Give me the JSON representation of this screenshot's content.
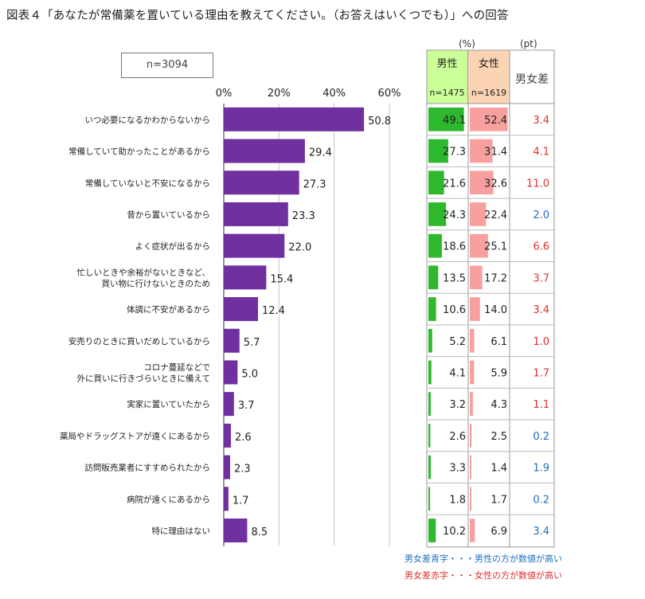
{
  "title": "図表４「あなたが常備薬を置いている理由を教えてください。（お答えはいくつでも）」への回答",
  "n_label": "n=3094",
  "table": {
    "unit_pct": "(%)",
    "unit_pt": "(pt)",
    "male_header": "男性",
    "female_header": "女性",
    "male_n": "n=1475",
    "female_n": "n=1619",
    "diff_header": "男女差",
    "male_color": "#2db82d",
    "female_color": "#f8a0a0",
    "male_header_bg": "#ccff99",
    "female_header_bg": "#fbd4b4",
    "blue": "#1f6fbf",
    "red": "#e03030"
  },
  "notes": {
    "blue_note": "男女差青字・・・男性の方が数値が高い",
    "red_note": "男女差赤字・・・女性の方が数値が高い"
  },
  "chart_data": {
    "type": "bar",
    "orientation": "horizontal",
    "xlim": [
      0,
      60
    ],
    "x_ticks": [
      "0%",
      "20%",
      "40%",
      "60%"
    ],
    "bar_color": "#7030a0",
    "categories": [
      [
        "いつ必要になるかわからないから"
      ],
      [
        "常備していて助かったことがあるから"
      ],
      [
        "常備していないと不安になるから"
      ],
      [
        "昔から置いているから"
      ],
      [
        "よく症状が出るから"
      ],
      [
        "忙しいときや余裕がないときなど、",
        "買い物に行けないときのため"
      ],
      [
        "体調に不安があるから"
      ],
      [
        "安売りのときに買いだめしているから"
      ],
      [
        "コロナ蔓延などで",
        "外に買いに行きづらいときに備えて"
      ],
      [
        "実家に置いていたから"
      ],
      [
        "薬局やドラッグストアが遠くにあるから"
      ],
      [
        "訪問販売業者にすすめられたから"
      ],
      [
        "病院が遠くにあるから"
      ],
      [
        "特に理由はない"
      ]
    ],
    "values": [
      50.8,
      29.4,
      27.3,
      23.3,
      22.0,
      15.4,
      12.4,
      5.7,
      5.0,
      3.7,
      2.6,
      2.3,
      1.7,
      8.5
    ],
    "value_labels": [
      "50.8",
      "29.4",
      "27.3",
      "23.3",
      "22.0",
      "15.4",
      "12.4",
      "5.7",
      "5.0",
      "3.7",
      "2.6",
      "2.3",
      "1.7",
      "8.5"
    ],
    "male": [
      "49.1",
      "27.3",
      "21.6",
      "24.3",
      "18.6",
      "13.5",
      "10.6",
      "5.2",
      "4.1",
      "3.2",
      "2.6",
      "3.3",
      "1.8",
      "10.2"
    ],
    "female": [
      "52.4",
      "31.4",
      "32.6",
      "22.4",
      "25.1",
      "17.2",
      "14.0",
      "6.1",
      "5.9",
      "4.3",
      "2.5",
      "1.4",
      "1.7",
      "6.9"
    ],
    "diff": [
      "3.4",
      "4.1",
      "11.0",
      "2.0",
      "6.6",
      "3.7",
      "3.4",
      "1.0",
      "1.7",
      "1.1",
      "0.2",
      "1.9",
      "0.2",
      "3.4"
    ],
    "diff_color": [
      "red",
      "red",
      "red",
      "blue",
      "red",
      "red",
      "red",
      "red",
      "red",
      "red",
      "blue",
      "blue",
      "blue",
      "blue"
    ]
  }
}
